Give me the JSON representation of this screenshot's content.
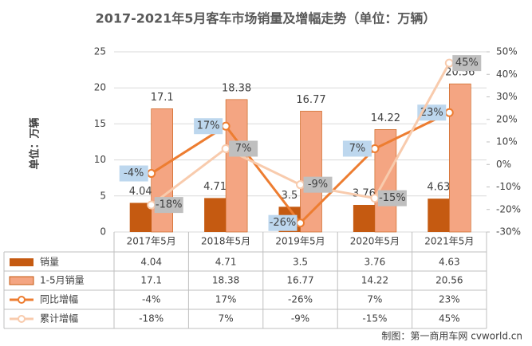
{
  "chart_data": {
    "type": "bar-line",
    "title": "2017-2021年5月客车市场销量及增幅走势（单位：万辆）",
    "y_label": "单位：万辆",
    "categories": [
      "2017年5月",
      "2018年5月",
      "2019年5月",
      "2020年5月",
      "2021年5月"
    ],
    "ylim": [
      0,
      25
    ],
    "yticks": [
      0,
      5,
      10,
      15,
      20,
      25
    ],
    "y2lim": [
      -30,
      50
    ],
    "y2ticks": [
      {
        "value": -30,
        "label": "-30%"
      },
      {
        "value": -20,
        "label": "-20%"
      },
      {
        "value": -10,
        "label": "-10%"
      },
      {
        "value": 0,
        "label": "0%"
      },
      {
        "value": 10,
        "label": "10%"
      },
      {
        "value": 20,
        "label": "20%"
      },
      {
        "value": 30,
        "label": "30%"
      },
      {
        "value": 40,
        "label": "40%"
      },
      {
        "value": 50,
        "label": "50%"
      }
    ],
    "grid": true,
    "series": [
      {
        "name": "销量",
        "type": "bar",
        "color": "#c55a11",
        "values": [
          4.04,
          4.71,
          3.5,
          3.76,
          4.63
        ]
      },
      {
        "name": "1-5月销量",
        "type": "bar",
        "color": "#f4a582",
        "values": [
          17.1,
          18.38,
          16.77,
          14.22,
          20.56
        ]
      },
      {
        "name": "同比增幅",
        "type": "line",
        "axis": "y2",
        "color": "#ed7d31",
        "values": [
          -4,
          17,
          -26,
          7,
          23
        ],
        "value_labels": [
          "-4%",
          "17%",
          "-26%",
          "7%",
          "23%"
        ]
      },
      {
        "name": "累计增幅",
        "type": "line",
        "axis": "y2",
        "color": "#f8cbad",
        "values": [
          -18,
          7,
          -9,
          -15,
          45
        ],
        "value_labels": [
          "-18%",
          "7%",
          "-9%",
          "-15%",
          "45%"
        ]
      }
    ],
    "source": "制图：第一商用车网 cvworld.cn"
  }
}
